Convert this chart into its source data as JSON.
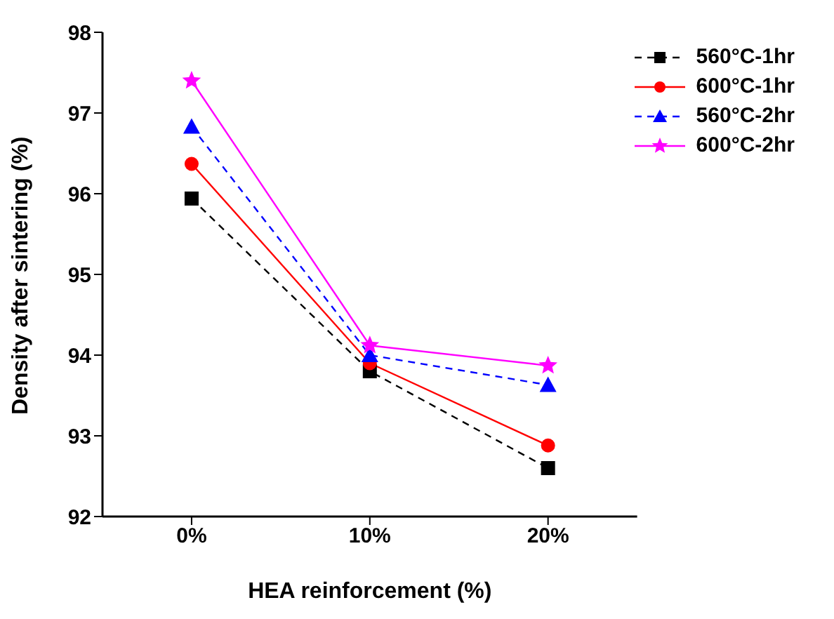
{
  "chart_data": {
    "type": "line",
    "xlabel": "HEA reinforcement (%)",
    "ylabel": "Density after sintering (%)",
    "categories": [
      "0%",
      "10%",
      "20%"
    ],
    "ylim": [
      92,
      98
    ],
    "yticks": [
      92,
      93,
      94,
      95,
      96,
      97,
      98
    ],
    "grid": false,
    "legend": "top right",
    "series": [
      {
        "name": "560°C-1hr",
        "color": "#000000",
        "values": [
          95.94,
          93.8,
          92.6
        ],
        "marker": "square",
        "line_style": "dashed"
      },
      {
        "name": "600°C-1hr",
        "color": "#ff0000",
        "values": [
          96.37,
          93.9,
          92.88
        ],
        "marker": "circle",
        "line_style": "solid"
      },
      {
        "name": "560°C-2hr",
        "color": "#0000ff",
        "values": [
          96.83,
          94.0,
          93.63
        ],
        "marker": "triangle",
        "line_style": "dashed"
      },
      {
        "name": "600°C-2hr",
        "color": "#ff00ff",
        "values": [
          97.4,
          94.12,
          93.87
        ],
        "marker": "star",
        "line_style": "solid"
      }
    ]
  }
}
